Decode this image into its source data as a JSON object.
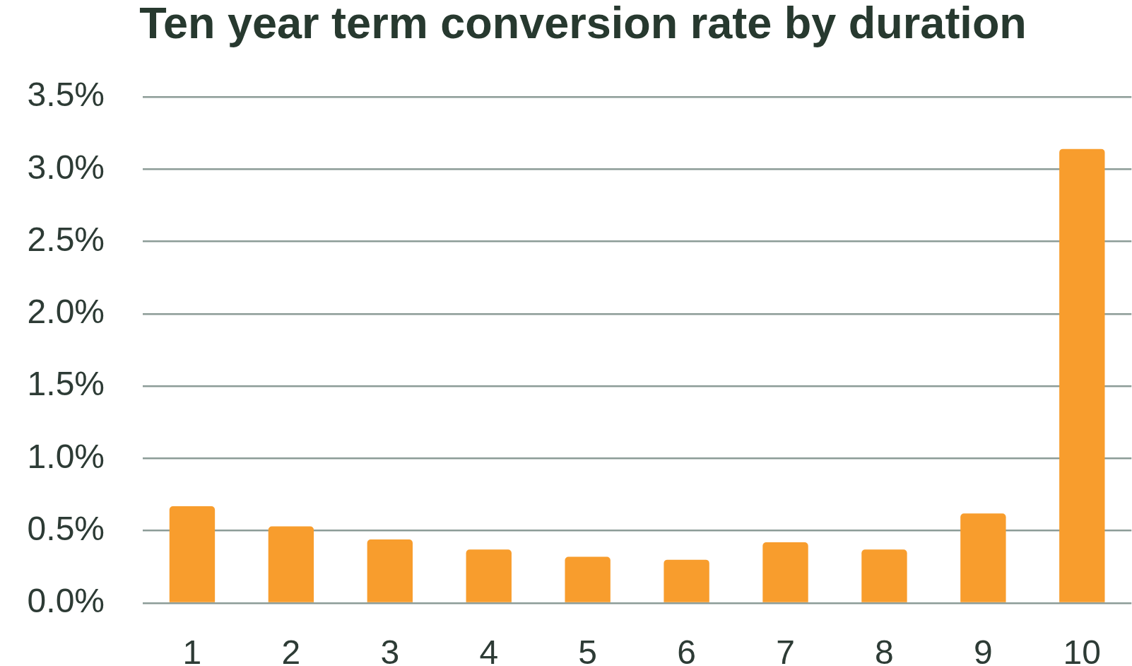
{
  "chart_data": {
    "type": "bar",
    "title": "Ten year term conversion rate by duration",
    "categories": [
      "1",
      "2",
      "3",
      "4",
      "5",
      "6",
      "7",
      "8",
      "9",
      "10"
    ],
    "values": [
      0.67,
      0.53,
      0.44,
      0.37,
      0.32,
      0.3,
      0.42,
      0.37,
      0.62,
      3.14
    ],
    "color": "#f89d2d",
    "ylim": [
      0,
      3.5
    ],
    "yticks": [
      {
        "value": 0,
        "label": "0.0%"
      },
      {
        "value": 0.5,
        "label": "0.5%"
      },
      {
        "value": 1,
        "label": "1.0%"
      },
      {
        "value": 1.5,
        "label": "1.5%"
      },
      {
        "value": 2,
        "label": "2.0%"
      },
      {
        "value": 2.5,
        "label": "2.5%"
      },
      {
        "value": 3,
        "label": "3.0%"
      },
      {
        "value": 3.5,
        "label": "3.5%"
      }
    ],
    "grid": "y"
  }
}
